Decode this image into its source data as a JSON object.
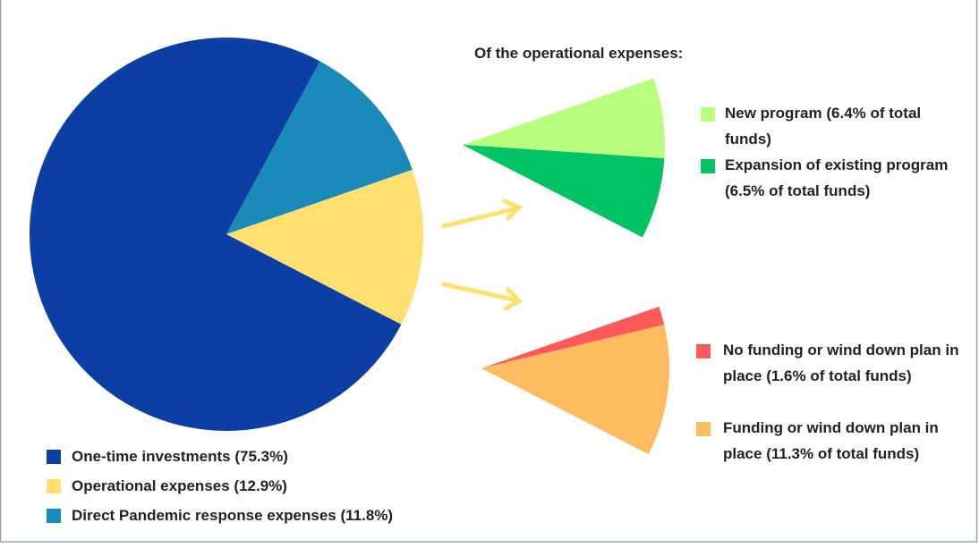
{
  "chart_data": [
    {
      "type": "pie",
      "categories": [
        "One-time investments (75.3%)",
        "Operational expenses (12.9%)",
        "Direct Pandemic response expenses (11.8%)"
      ],
      "values": [
        75.3,
        12.9,
        11.8
      ],
      "colors": [
        "#0b3fa3",
        "#ffe070",
        "#1a8ab8"
      ]
    },
    {
      "type": "pie",
      "title": "Of the operational expenses:",
      "categories": [
        "New program (6.4% of total funds)",
        "Expansion of existing program (6.5% of total funds)"
      ],
      "values": [
        6.4,
        6.5
      ],
      "colors": [
        "#b8ff80",
        "#00c364"
      ]
    },
    {
      "type": "pie",
      "categories": [
        "No funding or wind down plan in place (1.6% of total funds)",
        "Funding or wind down plan in place (11.3% of total funds)"
      ],
      "values": [
        1.6,
        11.3
      ],
      "colors": [
        "#ff5a5a",
        "#ffbb62"
      ]
    }
  ]
}
